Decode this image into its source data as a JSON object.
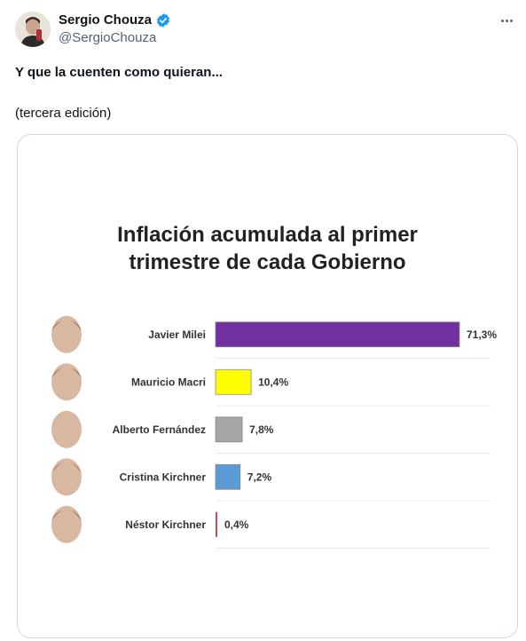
{
  "tweet": {
    "author_name": "Sergio Chouza",
    "author_handle": "@SergioChouza",
    "text": "Y que la cuenten como quieran...",
    "subtext": "(tercera edición)"
  },
  "icons": {
    "verified": "verified-badge-icon",
    "more": "more-options-icon"
  },
  "colors": {
    "verified": "#1d9bf0"
  },
  "chart_data": {
    "type": "bar",
    "title": "Inflación acumulada al primer trimestre de cada Gobierno",
    "title_lines": [
      "Inflación acumulada al primer",
      "trimestre de cada Gobierno"
    ],
    "categories": [
      "Javier Milei",
      "Mauricio Macri",
      "Alberto Fernández",
      "Cristina Kirchner",
      "Néstor Kirchner"
    ],
    "values": [
      71.3,
      10.4,
      7.8,
      7.2,
      0.4
    ],
    "value_labels": [
      "71,3%",
      "10,4%",
      "7,8%",
      "7,2%",
      "0,4%"
    ],
    "colors": [
      "#7030a0",
      "#ffff00",
      "#a6a6a6",
      "#5b9bd5",
      "#c0504d"
    ],
    "orientation": "horizontal",
    "xlabel": "",
    "ylabel": "",
    "grid": true,
    "legend": "none"
  }
}
